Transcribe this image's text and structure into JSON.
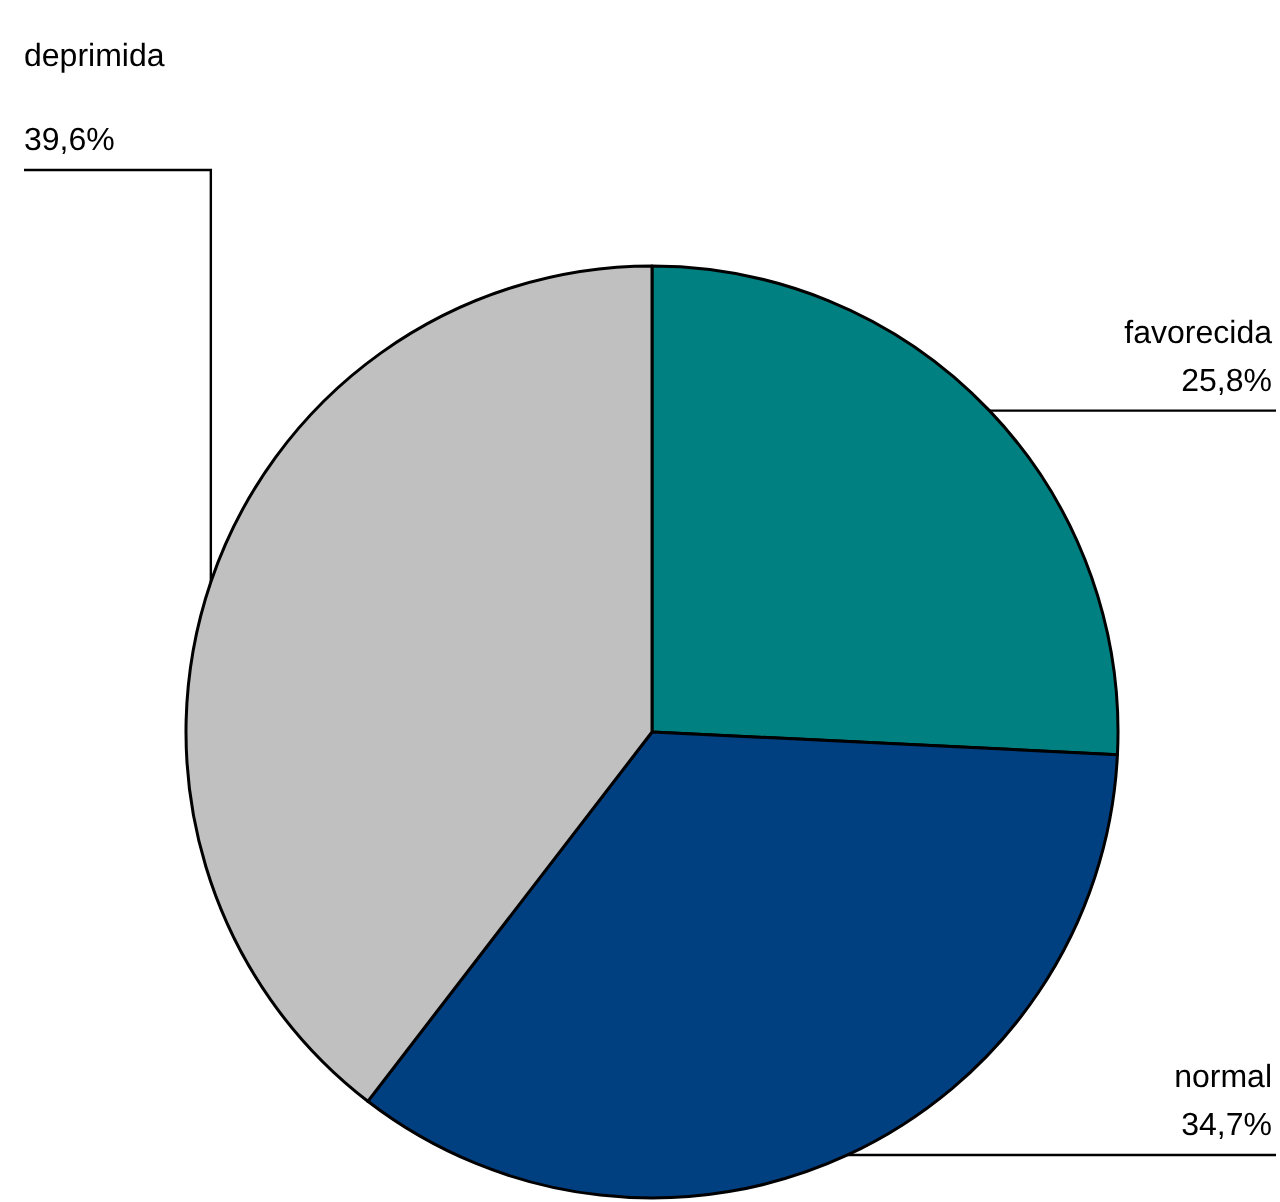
{
  "chart_data": {
    "type": "pie",
    "categories": [
      "favorecida",
      "normal",
      "deprimida"
    ],
    "values": [
      25.8,
      34.7,
      39.6
    ],
    "colors": [
      "#008080",
      "#003f80",
      "#c0c0c0"
    ],
    "value_labels": [
      "25,8%",
      "34,7%",
      "39,6%"
    ]
  }
}
